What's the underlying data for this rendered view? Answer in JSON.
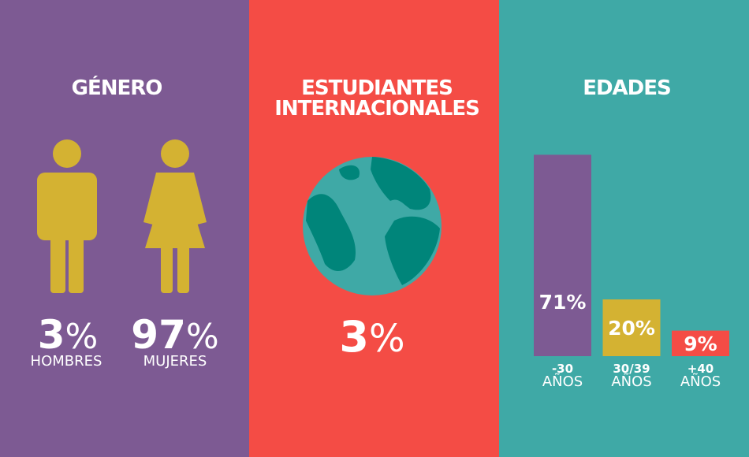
{
  "gender": {
    "title": "GÉNERO",
    "items": [
      {
        "value": 3,
        "unit": "%",
        "label": "HOMBRES"
      },
      {
        "value": 97,
        "unit": "%",
        "label": "MUJERES"
      }
    ]
  },
  "international": {
    "title_lines": [
      "ESTUDIANTES",
      "INTERNACIONALES"
    ],
    "value": 3,
    "unit": "%"
  },
  "ages": {
    "title": "EDADES",
    "type": "bar",
    "categories": [
      {
        "range": "-30",
        "unit": "AÑOS"
      },
      {
        "range": "30/39",
        "unit": "AÑOS"
      },
      {
        "range": "+40",
        "unit": "AÑOS"
      }
    ],
    "values": [
      71,
      20,
      9
    ],
    "value_labels": [
      "71%",
      "20%",
      "9%"
    ],
    "colors": [
      "#7d5a93",
      "#d4b232",
      "#f44c45"
    ]
  }
}
